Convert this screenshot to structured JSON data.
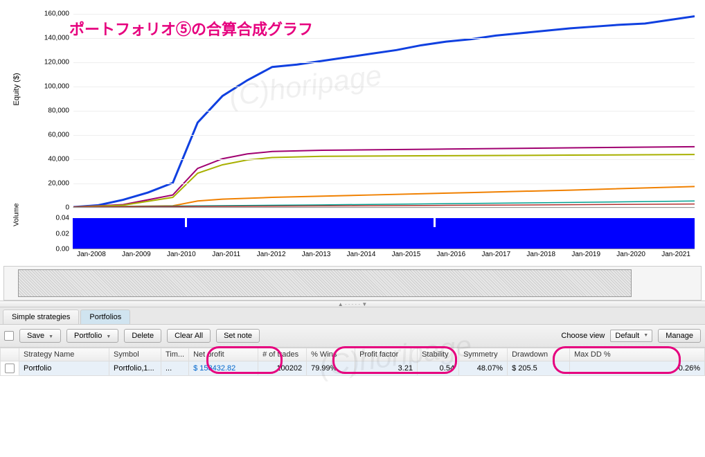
{
  "chart": {
    "title": "ポートフォリオ⑤の合算合成グラフ",
    "watermark": "(C)horipage",
    "y_axis_label": "Equity ($)",
    "y_ticks": [
      "0",
      "20,000",
      "40,000",
      "60,000",
      "80,000",
      "100,000",
      "120,000",
      "140,000",
      "160,000"
    ],
    "y_max": 160000,
    "x_ticks": [
      "Jan-2008",
      "Jan-2009",
      "Jan-2010",
      "Jan-2011",
      "Jan-2012",
      "Jan-2013",
      "Jan-2014",
      "Jan-2015",
      "Jan-2016",
      "Jan-2017",
      "Jan-2018",
      "Jan-2019",
      "Jan-2020",
      "Jan-2021"
    ],
    "series": [
      {
        "name": "total",
        "color": "#1040e0",
        "width": 3,
        "points": [
          [
            0,
            0
          ],
          [
            4,
            1500
          ],
          [
            8,
            6000
          ],
          [
            12,
            12000
          ],
          [
            16,
            20000
          ],
          [
            20,
            70000
          ],
          [
            24,
            92000
          ],
          [
            28,
            105000
          ],
          [
            32,
            116000
          ],
          [
            36,
            118000
          ],
          [
            40,
            121000
          ],
          [
            44,
            124000
          ],
          [
            48,
            127000
          ],
          [
            52,
            130000
          ],
          [
            56,
            134000
          ],
          [
            60,
            137000
          ],
          [
            64,
            139000
          ],
          [
            68,
            142000
          ],
          [
            72,
            144000
          ],
          [
            76,
            146000
          ],
          [
            80,
            148000
          ],
          [
            84,
            149500
          ],
          [
            88,
            151000
          ],
          [
            92,
            152000
          ],
          [
            96,
            155000
          ],
          [
            100,
            158000
          ]
        ]
      },
      {
        "name": "s2",
        "color": "#a00070",
        "width": 2,
        "points": [
          [
            0,
            0
          ],
          [
            8,
            2000
          ],
          [
            16,
            10000
          ],
          [
            20,
            32000
          ],
          [
            24,
            40000
          ],
          [
            28,
            44000
          ],
          [
            32,
            46000
          ],
          [
            40,
            47000
          ],
          [
            60,
            48000
          ],
          [
            80,
            49000
          ],
          [
            100,
            50000
          ]
        ]
      },
      {
        "name": "s3",
        "color": "#a8b000",
        "width": 2,
        "points": [
          [
            0,
            0
          ],
          [
            8,
            1500
          ],
          [
            16,
            8000
          ],
          [
            20,
            28000
          ],
          [
            24,
            35000
          ],
          [
            28,
            39000
          ],
          [
            32,
            41000
          ],
          [
            40,
            42000
          ],
          [
            60,
            42500
          ],
          [
            80,
            43000
          ],
          [
            100,
            43500
          ]
        ]
      },
      {
        "name": "s4",
        "color": "#f08000",
        "width": 2,
        "points": [
          [
            0,
            0
          ],
          [
            16,
            1000
          ],
          [
            20,
            5000
          ],
          [
            24,
            6500
          ],
          [
            32,
            8000
          ],
          [
            48,
            10000
          ],
          [
            64,
            12000
          ],
          [
            80,
            14000
          ],
          [
            100,
            17000
          ]
        ]
      },
      {
        "name": "s5",
        "color": "#00a090",
        "width": 1.5,
        "points": [
          [
            0,
            0
          ],
          [
            20,
            1000
          ],
          [
            40,
            1800
          ],
          [
            60,
            2800
          ],
          [
            80,
            3800
          ],
          [
            100,
            5000
          ]
        ]
      },
      {
        "name": "s6",
        "color": "#b03030",
        "width": 1.5,
        "points": [
          [
            0,
            0
          ],
          [
            20,
            500
          ],
          [
            40,
            900
          ],
          [
            60,
            1400
          ],
          [
            80,
            1900
          ],
          [
            100,
            2500
          ]
        ]
      }
    ]
  },
  "volume": {
    "label": "Volume",
    "ticks": [
      "0.00",
      "0.02",
      "0.04"
    ],
    "color": "#0000ff",
    "gaps_pct": [
      18,
      58
    ]
  },
  "tabs": {
    "items": [
      "Simple strategies",
      "Portfolios"
    ],
    "active": 1
  },
  "toolbar": {
    "save": "Save",
    "portfolio": "Portfolio",
    "delete": "Delete",
    "clear_all": "Clear All",
    "set_note": "Set note",
    "choose_view_label": "Choose view",
    "view_value": "Default",
    "manage": "Manage"
  },
  "table": {
    "columns": [
      "",
      "Strategy Name",
      "Symbol",
      "Tim...",
      "Net profit",
      "# of trades",
      "% Wins",
      "Profit factor",
      "Stability",
      "Symmetry",
      "Drawdown",
      "Max DD %"
    ],
    "row": {
      "strategy_name": "Portfolio",
      "symbol": "Portfolio,1...",
      "tim": "...",
      "net_profit": "$ 158432.82",
      "trades": "100202",
      "wins": "79.99%",
      "profit_factor": "3.21",
      "stability": "0.54",
      "symmetry": "48.07%",
      "drawdown": "$ 205.5",
      "max_dd": "0.26%"
    }
  },
  "annotations": {
    "oval_color": "#e6007e"
  }
}
